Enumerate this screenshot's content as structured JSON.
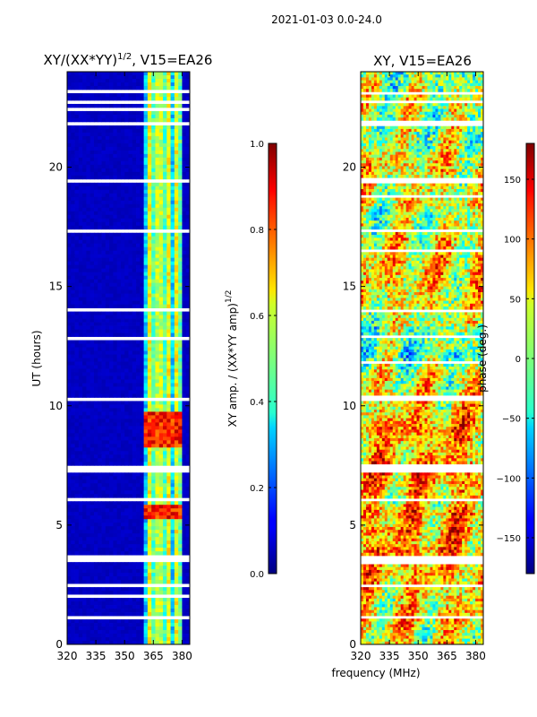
{
  "figure": {
    "suptitle": "2021-01-03 0.0-24.0",
    "shared_xlabel": "frequency (MHz)"
  },
  "chart_data": [
    {
      "type": "heatmap",
      "title_main": "XY/(XX*YY)",
      "title_sup": "1/2",
      "title_tail": ", V15=EA26",
      "xlabel": "",
      "ylabel": "UT (hours)",
      "xlim": [
        320,
        384
      ],
      "ylim": [
        0,
        24
      ],
      "xticks": [
        "320",
        "335",
        "350",
        "365",
        "380"
      ],
      "yticks": [
        "0",
        "5",
        "10",
        "15",
        "20"
      ],
      "xtick_values": [
        320,
        335,
        350,
        365,
        380
      ],
      "ytick_values": [
        0,
        5,
        10,
        15,
        20
      ],
      "colorbar": {
        "label_main": "XY amp. / (XX*YY amp)",
        "label_sup": "1/2",
        "range": [
          0.0,
          1.0
        ],
        "ticks": [
          "0.0",
          "0.2",
          "0.4",
          "0.6",
          "0.8",
          "1.0"
        ],
        "tick_values": [
          0.0,
          0.2,
          0.4,
          0.6,
          0.8,
          1.0
        ],
        "colormap": "jet"
      },
      "signal_band_mhz": [
        361,
        380
      ],
      "bright_hours": [
        [
          5.3,
          5.8
        ],
        [
          8.2,
          9.7
        ]
      ]
    },
    {
      "type": "heatmap",
      "title_main": "XY, V15=EA26",
      "xlabel": "frequency (MHz)",
      "ylabel": "",
      "xlim": [
        320,
        384
      ],
      "ylim": [
        0,
        24
      ],
      "xticks": [
        "320",
        "335",
        "350",
        "365",
        "380"
      ],
      "yticks": [
        "0",
        "5",
        "10",
        "15",
        "20"
      ],
      "xtick_values": [
        320,
        335,
        350,
        365,
        380
      ],
      "ytick_values": [
        0,
        5,
        10,
        15,
        20
      ],
      "colorbar": {
        "label_main": "phase (deg.)",
        "range": [
          -180,
          180
        ],
        "ticks": [
          "−150",
          "−100",
          "−50",
          "0",
          "50",
          "100",
          "150"
        ],
        "tick_values": [
          -150,
          -100,
          -50,
          0,
          50,
          100,
          150
        ],
        "colormap": "jet"
      }
    }
  ],
  "flagged_hours": [
    [
      21.7,
      21.95
    ],
    [
      19.3,
      19.55
    ],
    [
      13.9,
      14.1
    ],
    [
      10.25,
      10.4
    ],
    [
      7.2,
      7.55
    ],
    [
      5.95,
      6.1
    ],
    [
      3.4,
      3.7
    ],
    [
      2.35,
      2.5
    ],
    [
      1.1,
      1.2
    ],
    [
      0.9,
      0.95
    ],
    [
      23.1,
      23.2
    ],
    [
      22.7,
      22.75
    ],
    [
      22.4,
      22.45
    ],
    [
      18.7,
      18.8
    ],
    [
      17.3,
      17.4
    ],
    [
      16.5,
      16.55
    ],
    [
      15.3,
      15.35
    ],
    [
      12.8,
      12.9
    ],
    [
      11.8,
      11.9
    ],
    [
      9.9,
      9.95
    ],
    [
      8.95,
      9.0
    ],
    [
      4.8,
      4.85
    ],
    [
      4.2,
      4.25
    ],
    [
      3.0,
      3.05
    ],
    [
      2.0,
      2.05
    ]
  ]
}
